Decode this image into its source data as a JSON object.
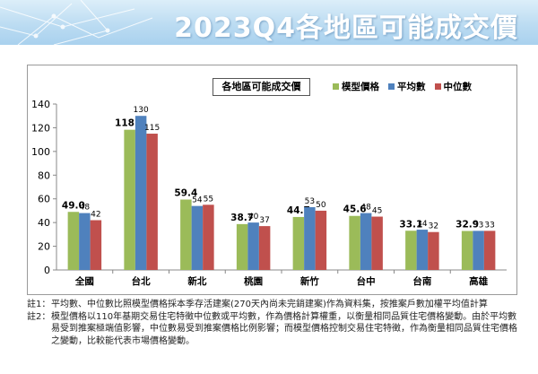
{
  "header": {
    "title": "2023Q4各地區可能成交價"
  },
  "chart_data": {
    "type": "bar",
    "title": "各地區可能成交價",
    "categories": [
      "全國",
      "台北",
      "新北",
      "桃園",
      "新竹",
      "台中",
      "台南",
      "高雄"
    ],
    "series": [
      {
        "name": "模型價格",
        "color": "#9bbb59",
        "values": [
          49.0,
          118.3,
          59.4,
          38.7,
          44.7,
          45.6,
          33.1,
          32.9
        ],
        "labels": [
          "49.0",
          "118.3",
          "59.4",
          "38.7",
          "44.7",
          "45.6",
          "33.1",
          "32.9"
        ]
      },
      {
        "name": "平均數",
        "color": "#4f81bd",
        "values": [
          48,
          130,
          54,
          40,
          53,
          48,
          34,
          33
        ],
        "labels": [
          "48",
          "130",
          "54",
          "40",
          "53",
          "48",
          "34",
          "33"
        ]
      },
      {
        "name": "中位數",
        "color": "#c0504d",
        "values": [
          42,
          115,
          55,
          37,
          50,
          45,
          32,
          33
        ],
        "labels": [
          "42",
          "115",
          "55",
          "37",
          "50",
          "45",
          "32",
          "33"
        ]
      }
    ],
    "ylim": [
      0,
      140
    ],
    "yticks": [
      "0",
      "20",
      "40",
      "60",
      "80",
      "100",
      "120",
      "140"
    ],
    "grid": false,
    "legend_position": "top-right"
  },
  "notes": [
    {
      "label": "註1：",
      "text": "平均數、中位數比照模型價格採本季存活建案(270天內尚未完銷建案)作為資料集，按推案戶數加權平均值計算"
    },
    {
      "label": "註2：",
      "text": "模型價格以110年基期交易住宅特徵中位數或平均數，作為價格計算權重，以衡量相同品質住宅價格變動。由於平均數易受到推案極端值影響，中位數易受到推案價格比例影響；而模型價格控制交易住宅特徵，作為衡量相同品質住宅價格之變動，比較能代表市場價格變動。"
    }
  ]
}
